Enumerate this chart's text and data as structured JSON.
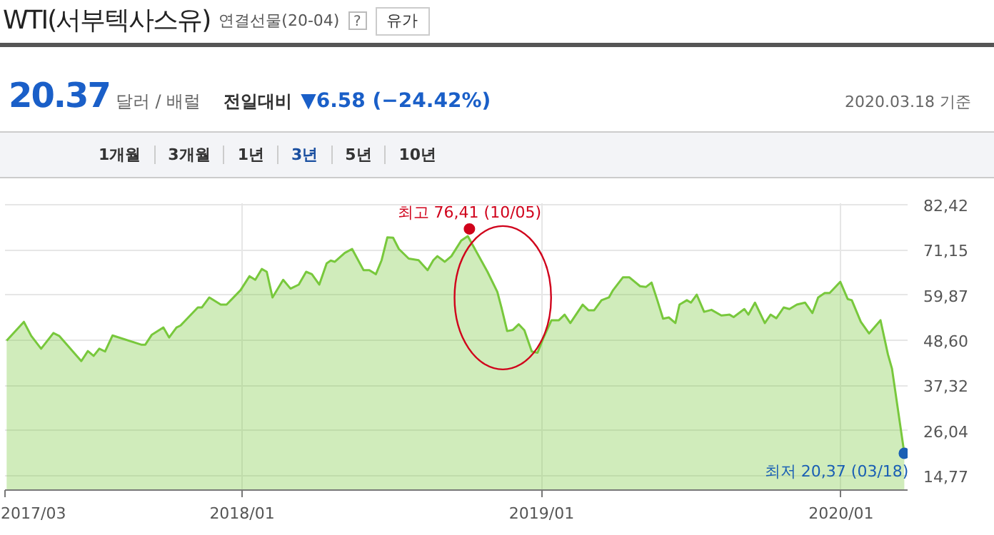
{
  "chart_data": {
    "type": "area",
    "title": "WTI(서부텍사스유)",
    "subtitle": "연결선물(20-04)",
    "xlim": [
      "2017-03-18",
      "2020-03-22"
    ],
    "ylim": [
      11.2,
      82.8
    ],
    "xticks": [
      {
        "value": "2017-03-18",
        "label": "2017/03"
      },
      {
        "value": "2018-01-01",
        "label": "2018/01"
      },
      {
        "value": "2019-01-01",
        "label": "2019/01"
      },
      {
        "value": "2020-01-01",
        "label": "2020/01"
      }
    ],
    "yticks": [
      {
        "value": 14.77,
        "label": "14,77"
      },
      {
        "value": 26.04,
        "label": "26,04"
      },
      {
        "value": 37.32,
        "label": "37,32"
      },
      {
        "value": 48.6,
        "label": "48,60"
      },
      {
        "value": 59.87,
        "label": "59,87"
      },
      {
        "value": 71.15,
        "label": "71,15"
      },
      {
        "value": 82.42,
        "label": "82,42"
      }
    ],
    "grid": true,
    "x": [
      "2017-03-20",
      "2017-04-10",
      "2017-04-19",
      "2017-05-01",
      "2017-05-16",
      "2017-05-23",
      "2017-06-19",
      "2017-06-27",
      "2017-07-04",
      "2017-07-11",
      "2017-07-18",
      "2017-07-27",
      "2017-08-31",
      "2017-09-05",
      "2017-09-13",
      "2017-09-27",
      "2017-10-04",
      "2017-10-13",
      "2017-10-18",
      "2017-11-08",
      "2017-11-13",
      "2017-11-22",
      "2017-12-06",
      "2017-12-13",
      "2017-12-30",
      "2018-01-10",
      "2018-01-17",
      "2018-01-25",
      "2018-01-31",
      "2018-02-07",
      "2018-02-20",
      "2018-03-01",
      "2018-03-11",
      "2018-03-20",
      "2018-03-27",
      "2018-04-05",
      "2018-04-14",
      "2018-04-19",
      "2018-04-24",
      "2018-05-06",
      "2018-05-15",
      "2018-05-29",
      "2018-06-05",
      "2018-06-13",
      "2018-06-20",
      "2018-06-27",
      "2018-07-04",
      "2018-07-11",
      "2018-07-23",
      "2018-08-04",
      "2018-08-15",
      "2018-08-22",
      "2018-08-27",
      "2018-09-05",
      "2018-09-13",
      "2018-09-25",
      "2018-10-03",
      "2018-10-27",
      "2018-11-08",
      "2018-11-13",
      "2018-11-20",
      "2018-11-27",
      "2018-12-04",
      "2018-12-11",
      "2018-12-20",
      "2018-12-27",
      "2019-01-03",
      "2019-01-13",
      "2019-01-22",
      "2019-01-29",
      "2019-02-05",
      "2019-02-20",
      "2019-02-27",
      "2019-03-06",
      "2019-03-15",
      "2019-03-24",
      "2019-03-29",
      "2019-04-10",
      "2019-04-18",
      "2019-05-01",
      "2019-05-08",
      "2019-05-15",
      "2019-05-22",
      "2019-05-29",
      "2019-06-05",
      "2019-06-13",
      "2019-06-18",
      "2019-06-27",
      "2019-07-02",
      "2019-07-09",
      "2019-07-18",
      "2019-07-27",
      "2019-08-08",
      "2019-08-18",
      "2019-08-23",
      "2019-09-05",
      "2019-09-10",
      "2019-09-18",
      "2019-09-30",
      "2019-10-07",
      "2019-10-14",
      "2019-10-23",
      "2019-10-30",
      "2019-11-08",
      "2019-11-18",
      "2019-11-27",
      "2019-12-04",
      "2019-12-12",
      "2019-12-18",
      "2019-12-31",
      "2020-01-09",
      "2020-01-14",
      "2020-01-25",
      "2020-02-04",
      "2020-02-18",
      "2020-02-27",
      "2020-03-03",
      "2020-03-18"
    ],
    "series": [
      {
        "color": "#78c83c",
        "values": [
          48.5,
          53.2,
          49.7,
          46.5,
          50.4,
          49.7,
          43.4,
          45.9,
          44.7,
          46.5,
          45.8,
          49.8,
          47.5,
          47.5,
          50.0,
          51.8,
          49.3,
          51.8,
          52.3,
          56.8,
          56.8,
          59.3,
          57.5,
          57.5,
          61.1,
          64.6,
          63.7,
          66.4,
          65.7,
          59.3,
          63.7,
          61.5,
          62.5,
          65.7,
          65.1,
          62.5,
          67.8,
          68.5,
          68.2,
          70.4,
          71.4,
          66.1,
          66.1,
          65.1,
          68.6,
          74.3,
          74.2,
          71.4,
          69.0,
          68.6,
          66.1,
          68.6,
          69.6,
          68.2,
          69.6,
          73.5,
          74.6,
          65.7,
          60.7,
          56.8,
          50.9,
          51.2,
          52.6,
          51.1,
          45.8,
          45.5,
          49.1,
          53.6,
          53.6,
          55.0,
          52.9,
          57.5,
          56.1,
          56.1,
          58.6,
          59.3,
          61.1,
          64.3,
          64.3,
          62.1,
          61.9,
          63.0,
          58.6,
          54.0,
          54.3,
          52.9,
          57.5,
          58.6,
          58.0,
          60.0,
          55.7,
          56.2,
          54.8,
          55.0,
          54.4,
          56.4,
          55.0,
          58.0,
          52.9,
          55.0,
          54.1,
          56.8,
          56.4,
          57.5,
          58.0,
          55.4,
          59.3,
          60.4,
          60.4,
          63.2,
          58.9,
          58.6,
          53.2,
          50.3,
          53.6,
          45.1,
          41.5,
          20.37
        ]
      }
    ],
    "annotations": [
      {
        "text": "최고 76,41 (10/05)",
        "x": "2018-10-05",
        "y": 76.41
      },
      {
        "text": "최저 20,37 (03/18)",
        "x": "2020-03-18",
        "y": 20.37
      },
      "?",
      "유가",
      "20.37",
      "달러 / 배럴",
      "전일대비",
      "▼6.58 (−24.42%)",
      "2020.03.18 기준",
      "1개월",
      "3개월",
      "1년",
      "3년",
      "5년",
      "10년"
    ]
  }
}
